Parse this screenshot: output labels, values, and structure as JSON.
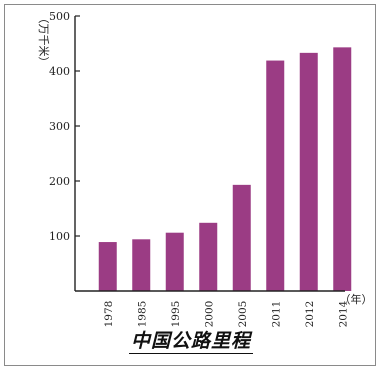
{
  "chart_data": {
    "type": "bar",
    "title": "中国公路里程",
    "ylabel": "（万千米）",
    "xlabel": "（年）",
    "categories": [
      "1978",
      "1985",
      "1995",
      "2000",
      "2005",
      "2011",
      "2012",
      "2014"
    ],
    "values": [
      89,
      94,
      106,
      124,
      193,
      419,
      433,
      443
    ],
    "ylim": [
      0,
      500
    ],
    "yticks": [
      100,
      200,
      300,
      400,
      500
    ],
    "grid": false,
    "colors": {
      "bar": "#9b3c84",
      "axis": "#222222"
    }
  }
}
